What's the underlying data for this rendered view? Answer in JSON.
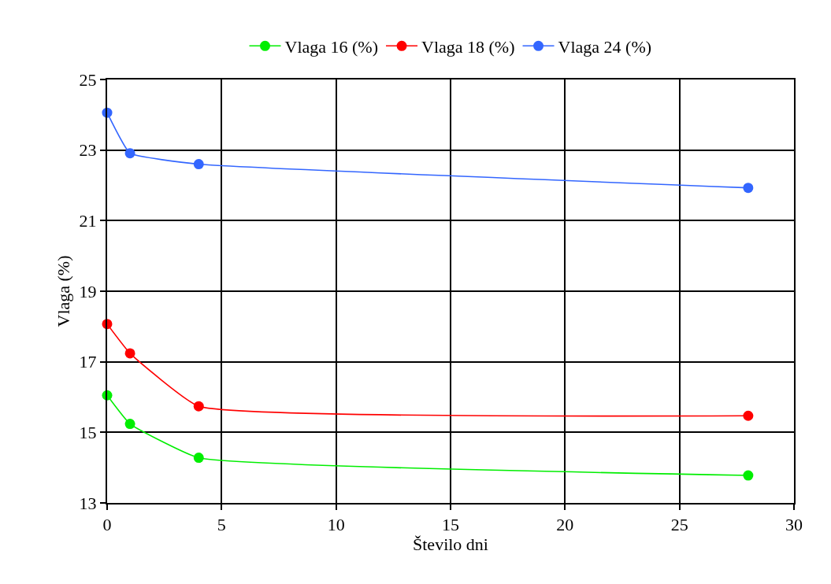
{
  "chart_data": {
    "type": "line",
    "xlabel": "Število dni",
    "ylabel": "Vlaga (%)",
    "x": [
      0,
      1,
      4,
      28
    ],
    "series": [
      {
        "name": "Vlaga 16 (%)",
        "color": "#00ee00",
        "values": [
          16.05,
          15.24,
          14.28,
          13.78
        ]
      },
      {
        "name": "Vlaga 18 (%)",
        "color": "#ff0000",
        "values": [
          18.07,
          17.24,
          15.74,
          15.47
        ]
      },
      {
        "name": "Vlaga 24 (%)",
        "color": "#3366ff",
        "values": [
          24.06,
          22.91,
          22.6,
          21.93
        ]
      }
    ],
    "xlim": [
      0,
      30
    ],
    "xticks": [
      0,
      5,
      10,
      15,
      20,
      25,
      30
    ],
    "ylim": [
      13,
      25
    ],
    "yticks": [
      13,
      15,
      17,
      19,
      21,
      23,
      25
    ],
    "grid": true,
    "legend": "top",
    "marker": "circle",
    "line_style": "solid"
  }
}
